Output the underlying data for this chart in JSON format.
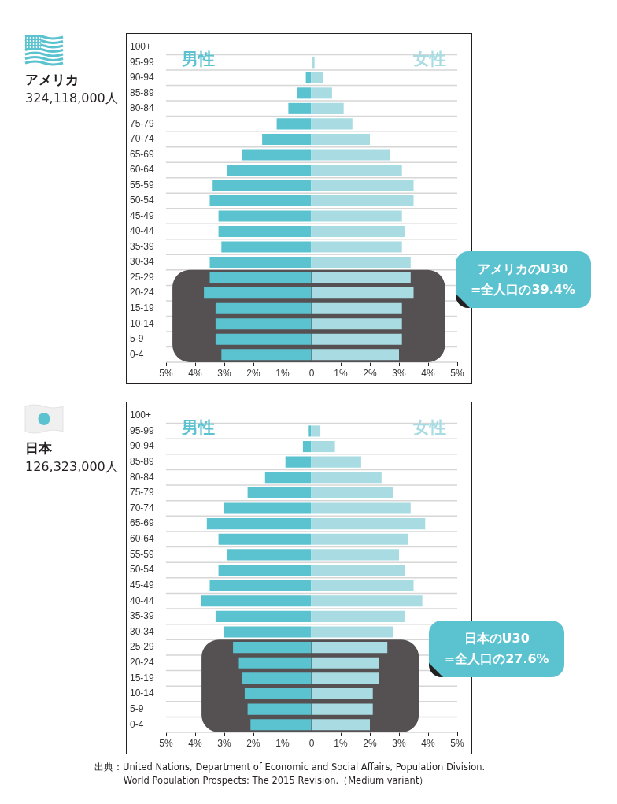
{
  "chart_data": [
    {
      "type": "bar",
      "orientation": "horizontal",
      "stacked": true,
      "title": "アメリカ",
      "subtitle": "324,118,000人",
      "categories": [
        "100+",
        "95-99",
        "90-94",
        "85-89",
        "80-84",
        "75-79",
        "70-74",
        "65-69",
        "60-64",
        "55-59",
        "50-54",
        "45-49",
        "40-44",
        "35-39",
        "30-34",
        "25-29",
        "20-24",
        "15-19",
        "10-14",
        "5-9",
        "0-4"
      ],
      "series": [
        {
          "name": "男性",
          "color": "#5bc2d0",
          "values": [
            0,
            0,
            -0.2,
            -0.5,
            -0.8,
            -1.2,
            -1.7,
            -2.4,
            -2.9,
            -3.4,
            -3.5,
            -3.2,
            -3.2,
            -3.1,
            -3.5,
            -3.5,
            -3.7,
            -3.3,
            -3.3,
            -3.3,
            -3.1
          ]
        },
        {
          "name": "女性",
          "color": "#a8dce2",
          "values": [
            0,
            0.1,
            0.4,
            0.7,
            1.1,
            1.4,
            2.0,
            2.7,
            3.1,
            3.5,
            3.5,
            3.1,
            3.2,
            3.1,
            3.4,
            3.4,
            3.5,
            3.1,
            3.1,
            3.1,
            3.0
          ]
        }
      ],
      "xlim": [
        -5,
        5
      ],
      "xticks": [
        {
          "value": -5,
          "label": "5%"
        },
        {
          "value": -4,
          "label": "4%"
        },
        {
          "value": -3,
          "label": "3%"
        },
        {
          "value": -2,
          "label": "2%"
        },
        {
          "value": -1,
          "label": "1%"
        },
        0,
        {
          "value": 1,
          "label": "1%"
        },
        {
          "value": 2,
          "label": "2%"
        },
        {
          "value": 3,
          "label": "3%"
        },
        {
          "value": 4,
          "label": "4%"
        },
        {
          "value": 5,
          "label": "5%"
        }
      ],
      "grid": "y",
      "legend": false,
      "bands": [
        {
          "axis": "y",
          "from": "25-29",
          "to": "0-4",
          "label": "アメリカのU30\n=全人口の39.4%",
          "color": "#555152"
        }
      ]
    },
    {
      "type": "bar",
      "orientation": "horizontal",
      "stacked": true,
      "title": "日本",
      "subtitle": "126,323,000人",
      "categories": [
        "100+",
        "95-99",
        "90-94",
        "85-89",
        "80-84",
        "75-79",
        "70-74",
        "65-69",
        "60-64",
        "55-59",
        "50-54",
        "45-49",
        "40-44",
        "35-39",
        "30-34",
        "25-29",
        "20-24",
        "15-19",
        "10-14",
        "5-9",
        "0-4"
      ],
      "series": [
        {
          "name": "男性",
          "color": "#5bc2d0",
          "values": [
            0,
            -0.1,
            -0.3,
            -0.9,
            -1.6,
            -2.2,
            -3.0,
            -3.6,
            -3.2,
            -2.9,
            -3.2,
            -3.5,
            -3.8,
            -3.3,
            -3.0,
            -2.7,
            -2.5,
            -2.4,
            -2.3,
            -2.2,
            -2.1
          ]
        },
        {
          "name": "女性",
          "color": "#a8dce2",
          "values": [
            0,
            0.3,
            0.8,
            1.7,
            2.4,
            2.8,
            3.4,
            3.9,
            3.3,
            3.0,
            3.2,
            3.5,
            3.8,
            3.2,
            2.8,
            2.6,
            2.3,
            2.3,
            2.1,
            2.1,
            2.0
          ]
        }
      ],
      "xlim": [
        -5,
        5
      ],
      "xticks": [
        {
          "value": -5,
          "label": "5%"
        },
        {
          "value": -4,
          "label": "4%"
        },
        {
          "value": -3,
          "label": "3%"
        },
        {
          "value": -2,
          "label": "2%"
        },
        {
          "value": -1,
          "label": "1%"
        },
        0,
        {
          "value": 1,
          "label": "1%"
        },
        {
          "value": 2,
          "label": "2%"
        },
        {
          "value": 3,
          "label": "3%"
        },
        {
          "value": 4,
          "label": "4%"
        },
        {
          "value": 5,
          "label": "5%"
        }
      ],
      "grid": "y",
      "legend": false,
      "bands": [
        {
          "axis": "y",
          "from": "25-29",
          "to": "0-4",
          "label": "日本のU30\n=全人口の27.6%",
          "color": "#555152"
        }
      ],
      "annotations": [
        "出典：United Nations, Department of Economic and Social Affairs, Population Division.\nWorld Population Prospects: The 2015 Revision.（Medium variant）"
      ]
    }
  ]
}
